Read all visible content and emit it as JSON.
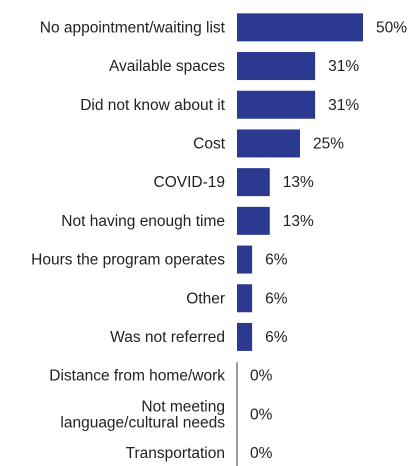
{
  "chart_data": {
    "type": "bar",
    "orientation": "horizontal",
    "categories": [
      "No appointment/waiting list",
      "Available spaces",
      "Did not know about it",
      "Cost",
      "COVID-19",
      "Not having enough time",
      "Hours the program operates",
      "Other",
      "Was not referred",
      "Distance from home/work",
      [
        "Not meeting",
        "language/cultural needs"
      ],
      "Transportation"
    ],
    "values": [
      50,
      31,
      31,
      25,
      13,
      13,
      6,
      6,
      6,
      0,
      0,
      0
    ],
    "value_labels": [
      "50%",
      "31%",
      "31%",
      "25%",
      "13%",
      "13%",
      "6%",
      "6%",
      "6%",
      "0%",
      "0%",
      "0%"
    ],
    "unit": "%",
    "xlim": [
      0,
      50
    ],
    "bar_color": "#2b3990",
    "axis_color": "#333333",
    "grid": false,
    "legend": "none",
    "title": "",
    "xlabel": "",
    "ylabel": ""
  }
}
